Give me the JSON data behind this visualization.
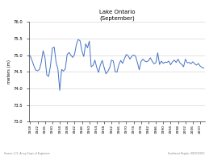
{
  "title": "Lake Ontario",
  "subtitle": "(September)",
  "ylabel": "meters (m)",
  "ylim": [
    73,
    76
  ],
  "yticks": [
    73,
    73.5,
    74,
    74.5,
    75,
    75.5,
    76
  ],
  "background_color": "#ffffff",
  "line_color": "#4472c4",
  "line_width": 0.7,
  "source_left": "Source: U.S. Army Corps of Engineers",
  "source_right": "Southeast Region, 08/31/2012",
  "years": [
    1918,
    1919,
    1920,
    1921,
    1922,
    1923,
    1924,
    1925,
    1926,
    1927,
    1928,
    1929,
    1930,
    1931,
    1932,
    1933,
    1934,
    1935,
    1936,
    1937,
    1938,
    1939,
    1940,
    1941,
    1942,
    1943,
    1944,
    1945,
    1946,
    1947,
    1948,
    1949,
    1950,
    1951,
    1952,
    1953,
    1954,
    1955,
    1956,
    1957,
    1958,
    1959,
    1960,
    1961,
    1962,
    1963,
    1964,
    1965,
    1966,
    1967,
    1968,
    1969,
    1970,
    1971,
    1972,
    1973,
    1974,
    1975,
    1976,
    1977,
    1978,
    1979,
    1980,
    1981,
    1982,
    1983,
    1984,
    1985,
    1986,
    1987,
    1988,
    1989,
    1990,
    1991,
    1992,
    1993,
    1994,
    1995,
    1996,
    1997,
    1998,
    1999,
    2000,
    2001,
    2002,
    2003,
    2004,
    2005,
    2006,
    2007,
    2008,
    2009,
    2010,
    2011,
    2012
  ],
  "values": [
    74.98,
    74.84,
    74.68,
    74.55,
    74.53,
    74.57,
    74.78,
    75.13,
    74.93,
    74.4,
    74.36,
    74.69,
    75.21,
    75.24,
    74.79,
    74.58,
    73.94,
    74.57,
    74.52,
    74.59,
    75.02,
    75.08,
    75.0,
    74.93,
    75.02,
    75.32,
    75.47,
    75.43,
    75.12,
    74.96,
    75.34,
    75.22,
    75.42,
    74.65,
    74.69,
    74.85,
    74.63,
    74.48,
    74.71,
    74.84,
    74.63,
    74.44,
    74.51,
    74.62,
    74.85,
    74.82,
    74.5,
    74.49,
    74.72,
    74.84,
    74.75,
    74.89,
    75.02,
    74.98,
    74.88,
    74.97,
    75.0,
    74.97,
    74.78,
    74.56,
    74.81,
    74.88,
    74.82,
    74.8,
    74.83,
    74.92,
    74.82,
    74.74,
    74.77,
    75.07,
    74.72,
    74.82,
    74.75,
    74.79,
    74.78,
    74.82,
    74.71,
    74.8,
    74.85,
    74.78,
    74.88,
    74.77,
    74.72,
    74.65,
    74.88,
    74.77,
    74.78,
    74.74,
    74.8,
    74.74,
    74.7,
    74.75,
    74.67,
    74.63,
    74.61
  ]
}
